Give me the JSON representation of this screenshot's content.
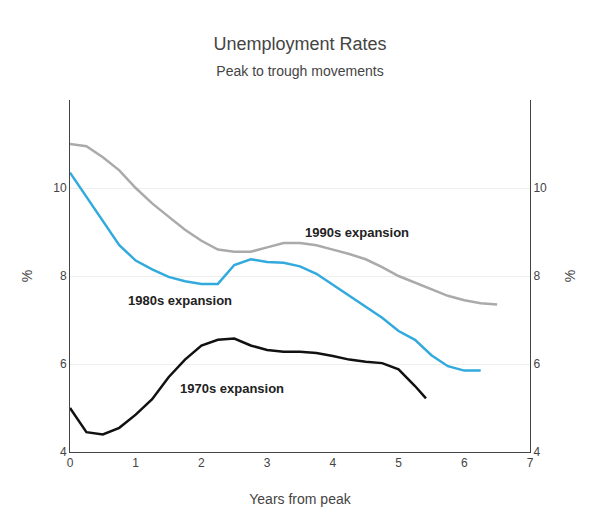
{
  "chart_data": {
    "type": "line",
    "title": "Unemployment Rates",
    "subtitle": "Peak to trough movements",
    "x_label": "Years from peak",
    "y_label": "%",
    "y2_label": "%",
    "xlim": [
      0,
      7
    ],
    "xticks": [
      0,
      1,
      2,
      3,
      4,
      5,
      6,
      7
    ],
    "ylim": [
      4,
      12
    ],
    "yticks": [
      4,
      6,
      8,
      10
    ],
    "y2lim": [
      4,
      12
    ],
    "y2ticks": [
      4,
      6,
      8,
      10
    ],
    "grid": "y",
    "series": [
      {
        "color": "#aaaaaa",
        "x": [
          0.0,
          0.25,
          0.5,
          0.75,
          1.0,
          1.25,
          1.5,
          1.75,
          2.0,
          2.25,
          2.5,
          2.75,
          3.0,
          3.25,
          3.5,
          3.75,
          4.0,
          4.25,
          4.5,
          4.75,
          5.0,
          5.25,
          5.5,
          5.75,
          6.0,
          6.25,
          6.5
        ],
        "values": [
          11.0,
          10.95,
          10.7,
          10.4,
          10.0,
          9.65,
          9.35,
          9.05,
          8.8,
          8.6,
          8.55,
          8.55,
          8.65,
          8.75,
          8.75,
          8.7,
          8.6,
          8.5,
          8.38,
          8.2,
          8.0,
          7.85,
          7.7,
          7.55,
          7.45,
          7.38,
          7.35
        ]
      },
      {
        "color": "#33aadd",
        "x": [
          0.0,
          0.25,
          0.5,
          0.75,
          1.0,
          1.25,
          1.5,
          1.75,
          2.0,
          2.25,
          2.5,
          2.75,
          3.0,
          3.25,
          3.5,
          3.75,
          4.0,
          4.25,
          4.5,
          4.75,
          5.0,
          5.25,
          5.5,
          5.75,
          6.0,
          6.25
        ],
        "values": [
          10.35,
          9.8,
          9.25,
          8.7,
          8.35,
          8.15,
          7.98,
          7.88,
          7.82,
          7.82,
          8.25,
          8.38,
          8.32,
          8.3,
          8.22,
          8.05,
          7.8,
          7.55,
          7.3,
          7.05,
          6.75,
          6.55,
          6.2,
          5.95,
          5.85,
          5.85
        ]
      },
      {
        "color": "#111111",
        "x": [
          0.0,
          0.25,
          0.5,
          0.75,
          1.0,
          1.25,
          1.5,
          1.75,
          2.0,
          2.25,
          2.5,
          2.75,
          3.0,
          3.25,
          3.5,
          3.75,
          4.0,
          4.25,
          4.5,
          4.75,
          5.0,
          5.25,
          5.417
        ],
        "values": [
          5.0,
          4.45,
          4.4,
          4.55,
          4.85,
          5.2,
          5.7,
          6.1,
          6.42,
          6.55,
          6.58,
          6.42,
          6.32,
          6.28,
          6.28,
          6.25,
          6.18,
          6.1,
          6.05,
          6.02,
          5.88,
          5.5,
          5.22
        ]
      }
    ],
    "annotations": [
      {
        "text": "1990s expansion",
        "x": 3.55,
        "y": 9.0
      },
      {
        "text": "1980s expansion",
        "x": 0.85,
        "y": 7.45
      },
      {
        "text": "1970s expansion",
        "x": 1.65,
        "y": 5.45
      }
    ]
  }
}
